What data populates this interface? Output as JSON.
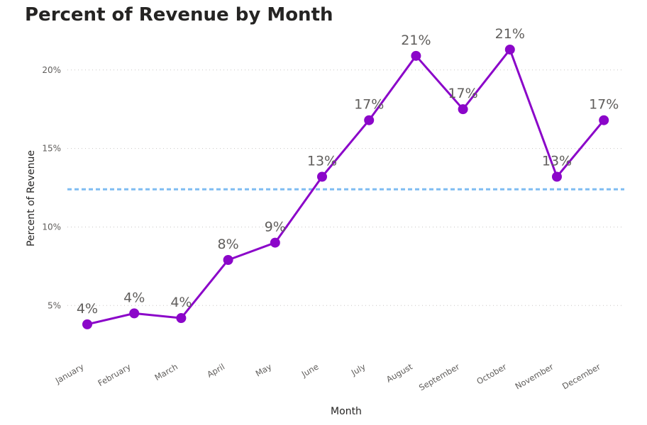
{
  "chart_data": {
    "type": "line",
    "title": "Percent of Revenue by Month",
    "xlabel": "Month",
    "ylabel": "Percent of Revenue",
    "categories": [
      "January",
      "February",
      "March",
      "April",
      "May",
      "June",
      "July",
      "August",
      "September",
      "October",
      "November",
      "December"
    ],
    "series": [
      {
        "values": [
          3.8,
          4.5,
          4.2,
          7.9,
          9.0,
          13.2,
          16.8,
          20.9,
          17.5,
          21.3,
          13.2,
          16.8
        ],
        "labels": [
          "4%",
          "4%",
          "4%",
          "8%",
          "9%",
          "13%",
          "17%",
          "21%",
          "17%",
          "21%",
          "13%",
          "17%"
        ],
        "color": "#8b06c9"
      }
    ],
    "yticks": [
      5,
      10,
      15,
      20
    ],
    "ytick_labels": [
      "5%",
      "10%",
      "15%",
      "20%"
    ],
    "ylim": [
      1.9,
      22.2
    ],
    "reference_line": {
      "value": 12.4,
      "style": "dashed",
      "color": "#7fbcf2"
    },
    "grid": true
  }
}
